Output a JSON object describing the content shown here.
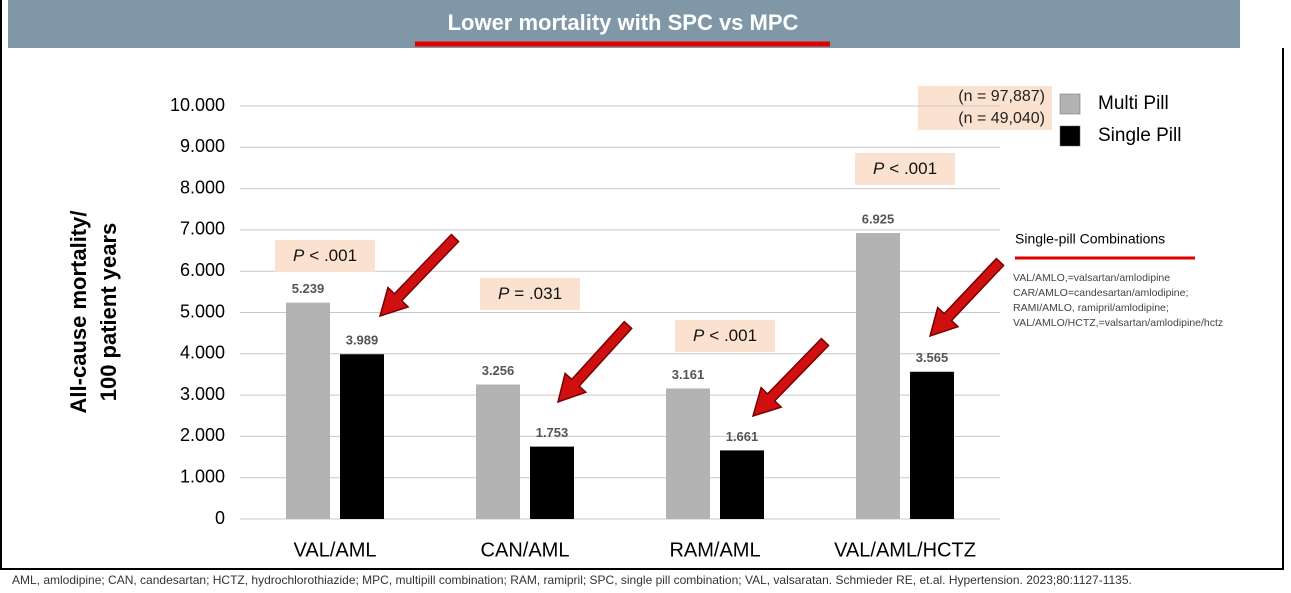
{
  "chart_data": {
    "type": "bar",
    "title": "Lower mortality with SPC vs MPC",
    "ylabel": [
      "All-cause mortality/",
      "100 patient years"
    ],
    "categories": [
      "VAL/AML",
      "CAN/AML",
      "RAM/AML",
      "VAL/AML/HCTZ"
    ],
    "series": [
      {
        "name": "Multi Pill",
        "color": "#b3b3b3",
        "values": [
          5.239,
          3.256,
          3.161,
          6.925
        ]
      },
      {
        "name": "Single Pill",
        "color": "#000000",
        "values": [
          3.989,
          1.753,
          1.661,
          3.565
        ]
      }
    ],
    "legend_notes": [
      "(n = 97,887)",
      "(n = 49,040)"
    ],
    "p_values": [
      {
        "symbol": "P",
        "relation": "< .001"
      },
      {
        "symbol": "P",
        "relation": "= .031"
      },
      {
        "symbol": "P",
        "relation": "< .001"
      },
      {
        "symbol": "P",
        "relation": "< .001"
      }
    ],
    "ylim": [
      0,
      10
    ],
    "yticks": [
      0,
      {
        "value": 1,
        "label": "1.000"
      },
      {
        "value": 2,
        "label": "2.000"
      },
      {
        "value": 3,
        "label": "3.000"
      },
      {
        "value": 4,
        "label": "4.000"
      },
      {
        "value": 5,
        "label": "5.000"
      },
      {
        "value": 6,
        "label": "6.000"
      },
      {
        "value": 7,
        "label": "7.000"
      },
      {
        "value": 8,
        "label": "8.000"
      },
      {
        "value": 9,
        "label": "9.000"
      },
      {
        "value": 10,
        "label": "10.000"
      }
    ],
    "grid": true,
    "legend_position": "upper right",
    "side_note": {
      "title": "Single-pill Combinations",
      "lines": [
        "VAL/AMLO,=valsartan/amlodipine",
        "CAR/AMLO=candesartan/amlodipine;",
        "RAMI/AMLO, ramipril/amlodipine;",
        "VAL/AMLO/HCTZ,=valsartan/amlodipine/hctz"
      ]
    },
    "footnote": "AML, amlodipine; CAN, candesartan; HCTZ, hydrochlorothiazide; MPC, multipill combination; RAM, ramipril; SPC, single pill combination; VAL, valsaratan. Schmieder RE, et.al. Hypertension. 2023;80:1127-1135."
  }
}
